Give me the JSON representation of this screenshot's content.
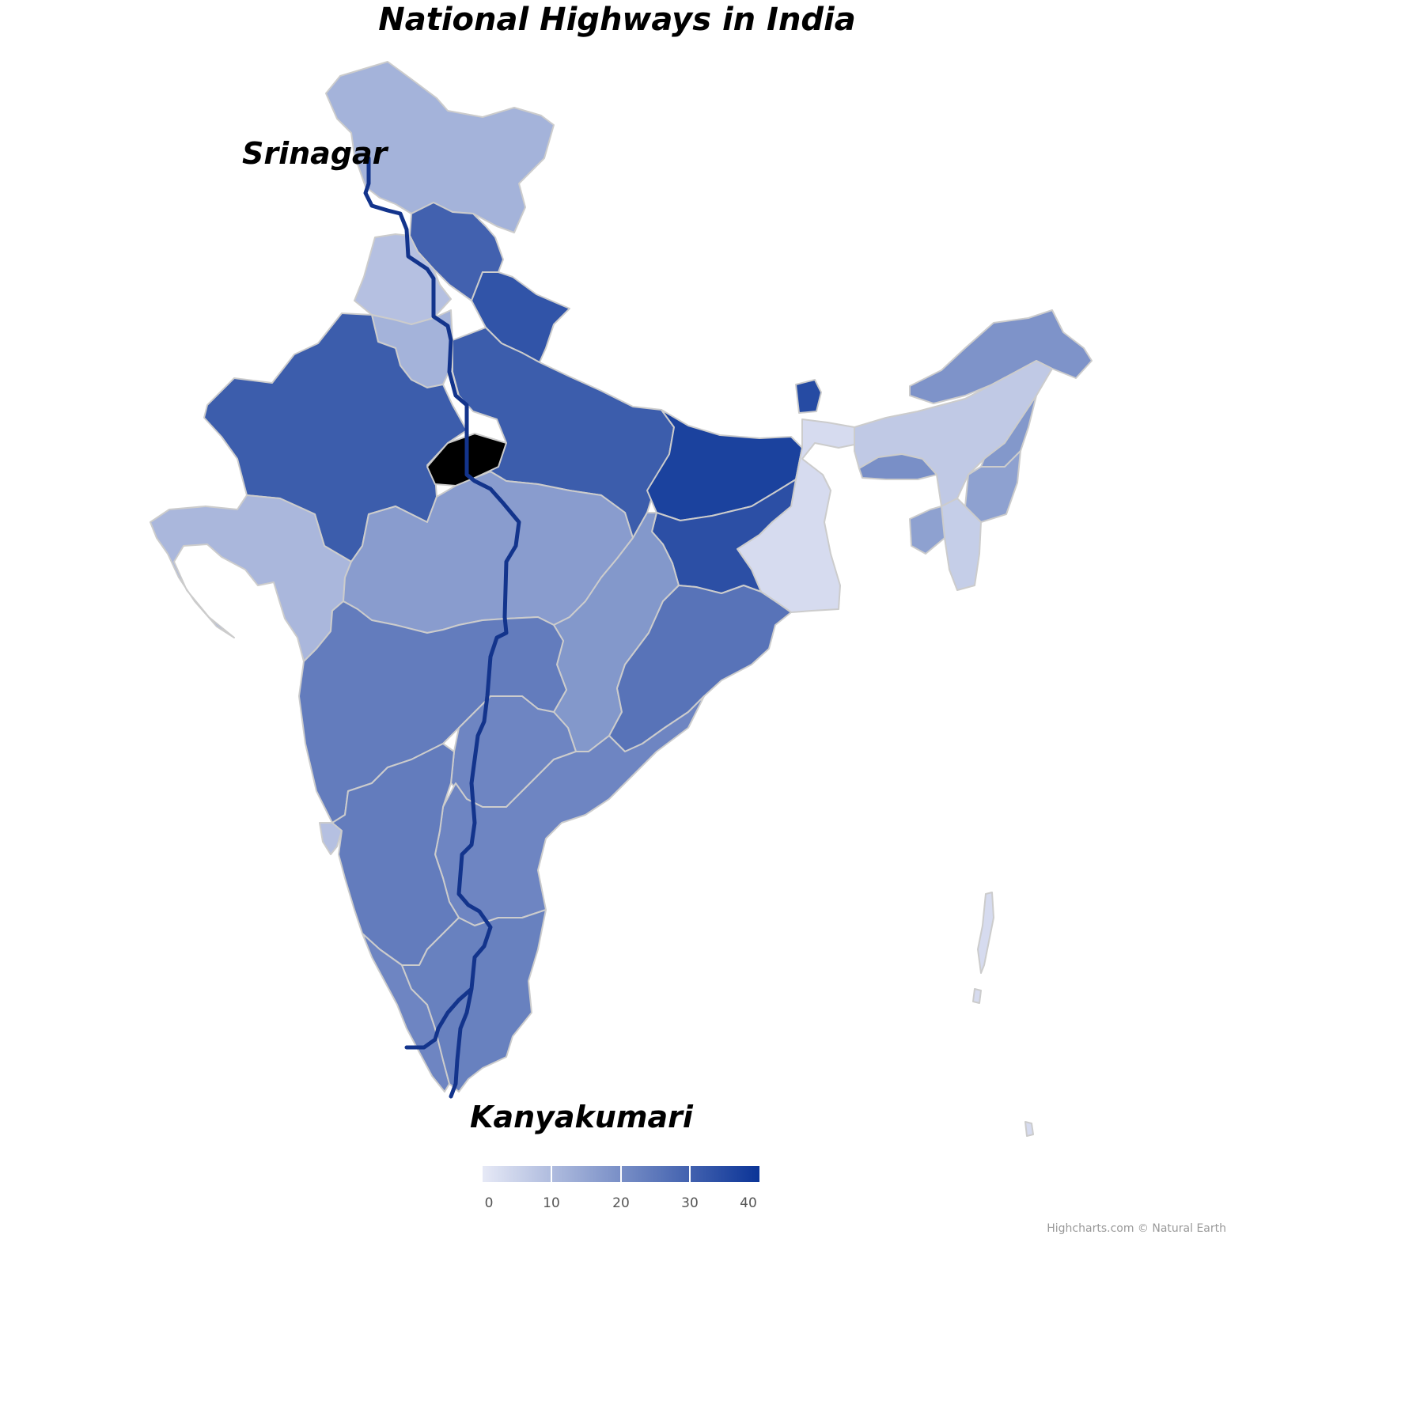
{
  "title": "National Highways in India",
  "cities": {
    "start": "Srinagar",
    "end": "Kanyakumari"
  },
  "credits": "Highcharts.com © Natural Earth",
  "colors": {
    "low": "#e6e9f6",
    "high": "#0b3497",
    "border": "#cccccc",
    "route": "#13348c"
  },
  "colorAxis": {
    "min": 0,
    "max": 40,
    "ticks": [
      "0",
      "10",
      "20",
      "30",
      "40"
    ]
  },
  "chart_data": {
    "type": "choropleth",
    "legend": "bottom-center",
    "regions": [
      {
        "name": "Jammu and Kashmir",
        "value": 12
      },
      {
        "name": "Himachal Pradesh",
        "value": 30
      },
      {
        "name": "Punjab",
        "value": 9
      },
      {
        "name": "Haryana",
        "value": 12
      },
      {
        "name": "Uttarakhand",
        "value": 33
      },
      {
        "name": "Rajasthan",
        "value": 31
      },
      {
        "name": "Uttar Pradesh",
        "value": 31
      },
      {
        "name": "Bihar",
        "value": 37
      },
      {
        "name": "Sikkim",
        "value": 35
      },
      {
        "name": "West Bengal",
        "value": 3
      },
      {
        "name": "Jharkhand",
        "value": 34
      },
      {
        "name": "Gujarat",
        "value": 11
      },
      {
        "name": "Madhya Pradesh",
        "value": 17
      },
      {
        "name": "Chhattisgarh",
        "value": 18
      },
      {
        "name": "Odisha",
        "value": 26
      },
      {
        "name": "Maharashtra",
        "value": 24
      },
      {
        "name": "Telangana",
        "value": 22
      },
      {
        "name": "Andhra Pradesh",
        "value": 22
      },
      {
        "name": "Karnataka",
        "value": 24
      },
      {
        "name": "Goa",
        "value": 9
      },
      {
        "name": "Kerala",
        "value": 22
      },
      {
        "name": "Tamil Nadu",
        "value": 23
      },
      {
        "name": "Arunachal Pradesh",
        "value": 19
      },
      {
        "name": "Assam",
        "value": 7
      },
      {
        "name": "Meghalaya",
        "value": 20
      },
      {
        "name": "Nagaland",
        "value": 18
      },
      {
        "name": "Manipur",
        "value": 16
      },
      {
        "name": "Mizoram",
        "value": 6
      },
      {
        "name": "Tripura",
        "value": 16
      },
      {
        "name": "Andaman and Nicobar",
        "value": 3
      }
    ]
  }
}
